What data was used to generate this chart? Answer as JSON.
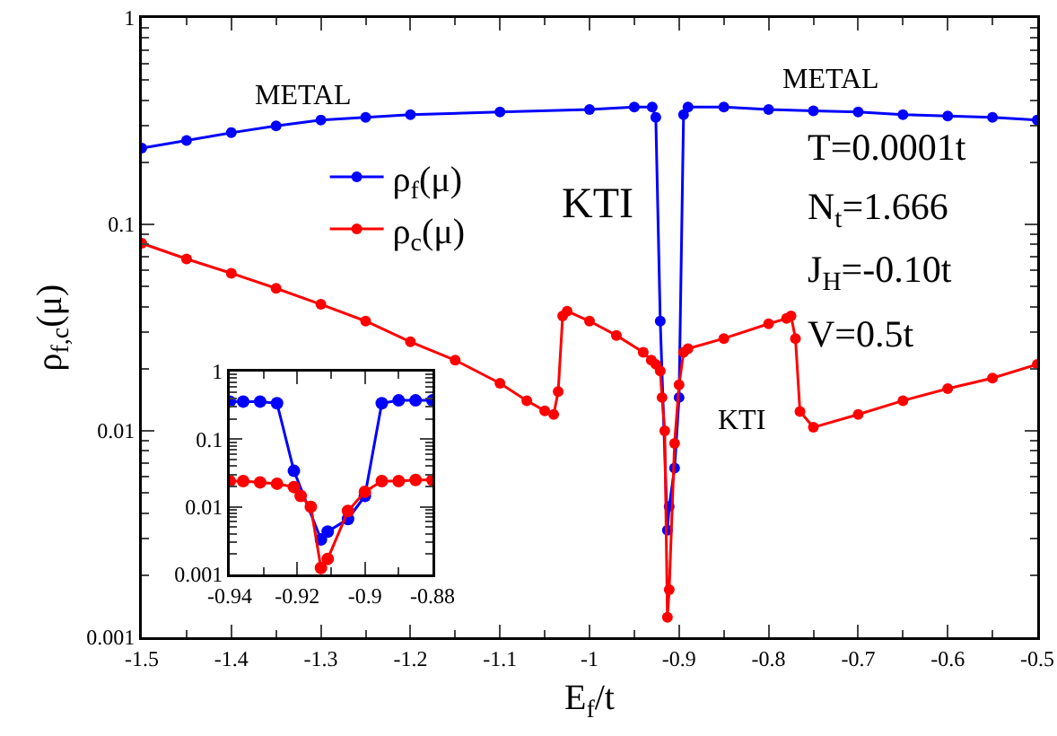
{
  "chart_data": [
    {
      "type": "line",
      "xlabel": "E$_{f}$/t",
      "ylabel": "ρ$_{f,c}$(μ)",
      "log": "y",
      "grid": false,
      "legend": "top left",
      "marker": "circle",
      "line_style": "solid",
      "xlim": [
        -1.5,
        -0.5
      ],
      "xticks": [
        -1.5,
        -1.4,
        -1.3,
        -1.2,
        -1.1,
        -1,
        -0.9,
        -0.8,
        -0.7,
        -0.6,
        -0.5
      ],
      "ylim": [
        0.001,
        1
      ],
      "yticks": [
        0.001,
        0.01,
        0.1,
        1
      ],
      "series": [
        {
          "name": "ρ$_{f}$(μ)",
          "color": "#0000ff",
          "x": [
            -1.5,
            -1.45,
            -1.4,
            -1.35,
            -1.3,
            -1.25,
            -1.2,
            -1.1,
            -1.0,
            -0.95,
            -0.93,
            -0.926,
            -0.921,
            -0.913,
            -0.911,
            -0.905,
            -0.9,
            -0.895,
            -0.89,
            -0.85,
            -0.8,
            -0.75,
            -0.7,
            -0.65,
            -0.6,
            -0.55,
            -0.5
          ],
          "values": [
            0.234,
            0.255,
            0.278,
            0.3,
            0.32,
            0.33,
            0.34,
            0.35,
            0.36,
            0.37,
            0.37,
            0.33,
            0.034,
            0.0033,
            0.0043,
            0.0066,
            0.0145,
            0.34,
            0.37,
            0.37,
            0.36,
            0.355,
            0.35,
            0.34,
            0.335,
            0.33,
            0.32
          ]
        },
        {
          "name": "ρ$_{c}$(μ)",
          "color": "#ff0000",
          "x": [
            -1.5,
            -1.45,
            -1.4,
            -1.35,
            -1.3,
            -1.25,
            -1.2,
            -1.15,
            -1.1,
            -1.07,
            -1.05,
            -1.04,
            -1.035,
            -1.03,
            -1.025,
            -1.0,
            -0.97,
            -0.94,
            -0.931,
            -0.926,
            -0.921,
            -0.919,
            -0.916,
            -0.913,
            -0.911,
            -0.905,
            -0.9,
            -0.895,
            -0.89,
            -0.85,
            -0.8,
            -0.78,
            -0.775,
            -0.77,
            -0.765,
            -0.75,
            -0.7,
            -0.65,
            -0.6,
            -0.55,
            -0.5
          ],
          "values": [
            0.081,
            0.068,
            0.058,
            0.049,
            0.041,
            0.034,
            0.027,
            0.022,
            0.017,
            0.014,
            0.0125,
            0.012,
            0.0155,
            0.036,
            0.038,
            0.034,
            0.029,
            0.024,
            0.022,
            0.021,
            0.0195,
            0.0145,
            0.01,
            0.00125,
            0.0017,
            0.0087,
            0.0167,
            0.024,
            0.025,
            0.028,
            0.033,
            0.035,
            0.036,
            0.028,
            0.0124,
            0.0104,
            0.012,
            0.014,
            0.016,
            0.018,
            0.021
          ]
        }
      ],
      "annotations": [
        "METAL",
        "METAL",
        "KTI",
        "KTI",
        "T=0.0001t",
        "N$_{t}$=1.666",
        "J$_{H}$=-0.10t",
        "V=0.5t"
      ]
    },
    {
      "type": "line",
      "log": "y",
      "grid": false,
      "legend": false,
      "marker": "circle",
      "line_style": "solid",
      "xlim": [
        -0.94,
        -0.88
      ],
      "xticks": [
        -0.94,
        -0.92,
        -0.9,
        -0.88
      ],
      "ylim": [
        0.001,
        1
      ],
      "yticks": [
        0.001,
        0.01,
        0.1,
        1
      ],
      "series": [
        {
          "color": "#0000ff",
          "x": [
            -0.94,
            -0.936,
            -0.931,
            -0.926,
            -0.921,
            -0.913,
            -0.911,
            -0.905,
            -0.9,
            -0.895,
            -0.89,
            -0.885,
            -0.88
          ],
          "values": [
            0.36,
            0.36,
            0.36,
            0.34,
            0.034,
            0.0033,
            0.0043,
            0.0066,
            0.0145,
            0.34,
            0.375,
            0.375,
            0.375
          ]
        },
        {
          "color": "#ff0000",
          "x": [
            -0.94,
            -0.936,
            -0.931,
            -0.926,
            -0.921,
            -0.919,
            -0.916,
            -0.913,
            -0.911,
            -0.905,
            -0.9,
            -0.895,
            -0.89,
            -0.885,
            -0.88
          ],
          "values": [
            0.024,
            0.024,
            0.023,
            0.022,
            0.0196,
            0.0145,
            0.01,
            0.00125,
            0.0017,
            0.0087,
            0.0167,
            0.024,
            0.024,
            0.025,
            0.025
          ]
        }
      ]
    }
  ]
}
